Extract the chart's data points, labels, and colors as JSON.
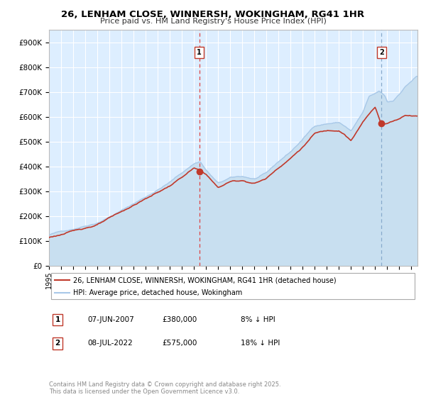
{
  "title": "26, LENHAM CLOSE, WINNERSH, WOKINGHAM, RG41 1HR",
  "subtitle": "Price paid vs. HM Land Registry's House Price Index (HPI)",
  "legend_property": "26, LENHAM CLOSE, WINNERSH, WOKINGHAM, RG41 1HR (detached house)",
  "legend_hpi": "HPI: Average price, detached house, Wokingham",
  "annotation1_label": "1",
  "annotation1_date": "07-JUN-2007",
  "annotation1_price": 380000,
  "annotation1_pct": "8% ↓ HPI",
  "annotation1_year": 2007.44,
  "annotation2_label": "2",
  "annotation2_date": "08-JUL-2022",
  "annotation2_price": 575000,
  "annotation2_pct": "18% ↓ HPI",
  "annotation2_year": 2022.52,
  "ylabel_ticks": [
    "£0",
    "£100K",
    "£200K",
    "£300K",
    "£400K",
    "£500K",
    "£600K",
    "£700K",
    "£800K",
    "£900K"
  ],
  "ytick_values": [
    0,
    100000,
    200000,
    300000,
    400000,
    500000,
    600000,
    700000,
    800000,
    900000
  ],
  "xmin": 1995,
  "xmax": 2025.5,
  "ymin": 0,
  "ymax": 950000,
  "hpi_color": "#a8c8e8",
  "hpi_fill_color": "#c8dff0",
  "property_color": "#c0392b",
  "bg_color": "#ffffff",
  "plot_bg": "#ddeeff",
  "grid_color": "#ffffff",
  "vline1_color": "#dd4444",
  "vline2_color": "#88aacc",
  "copyright_text": "Contains HM Land Registry data © Crown copyright and database right 2025.\nThis data is licensed under the Open Government Licence v3.0.",
  "footnote_color": "#888888"
}
